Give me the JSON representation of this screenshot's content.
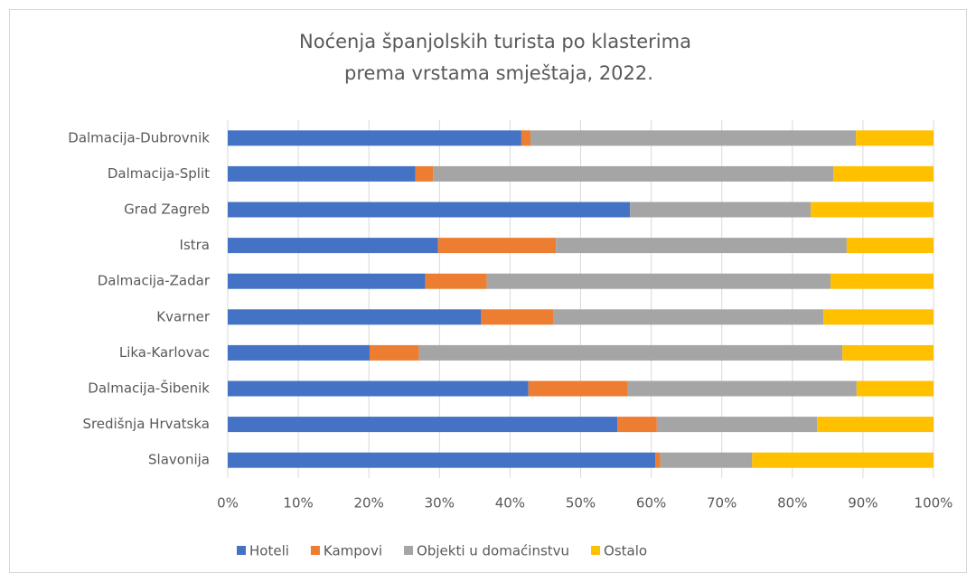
{
  "chart_data": {
    "type": "stacked_barh",
    "title": [
      "Noćenja španjolskih turista po klasterima",
      "prema vrstama smještaja, 2022."
    ],
    "categories": [
      "Dalmacija-Dubrovnik",
      "Dalmacija-Split",
      "Grad Zagreb",
      "Istra",
      "Dalmacija-Zadar",
      "Kvarner",
      "Lika-Karlovac",
      "Dalmacija-Šibenik",
      "Središnja Hrvatska",
      "Slavonija"
    ],
    "series": [
      {
        "name": "Hoteli",
        "color": "#4472c4",
        "values": [
          41.6,
          26.6,
          57.0,
          29.8,
          28.0,
          35.9,
          20.1,
          42.6,
          55.2,
          60.6
        ]
      },
      {
        "name": "Kampovi",
        "color": "#ed7d31",
        "values": [
          1.3,
          2.5,
          0,
          16.7,
          8.7,
          10.2,
          7.0,
          14.1,
          5.6,
          0.7
        ]
      },
      {
        "name": "Objekti u domaćinstvu",
        "color": "#a5a5a5",
        "values": [
          46.1,
          56.7,
          25.6,
          41.2,
          48.7,
          38.3,
          60.0,
          32.4,
          22.7,
          13.0
        ]
      },
      {
        "name": "Ostalo",
        "color": "#ffc000",
        "values": [
          11.0,
          14.2,
          17.4,
          12.3,
          14.6,
          15.6,
          12.9,
          10.9,
          16.5,
          25.7
        ]
      }
    ],
    "xlim": [
      0,
      100
    ],
    "xticks": [
      {
        "value": 0,
        "label": "0%"
      },
      {
        "value": 10,
        "label": "10%"
      },
      {
        "value": 20,
        "label": "20%"
      },
      {
        "value": 30,
        "label": "30%"
      },
      {
        "value": 40,
        "label": "40%"
      },
      {
        "value": 50,
        "label": "50%"
      },
      {
        "value": 60,
        "label": "60%"
      },
      {
        "value": 70,
        "label": "70%"
      },
      {
        "value": 80,
        "label": "80%"
      },
      {
        "value": 90,
        "label": "90%"
      },
      {
        "value": 100,
        "label": "100%"
      }
    ],
    "grid": true,
    "legend": "bottom"
  }
}
